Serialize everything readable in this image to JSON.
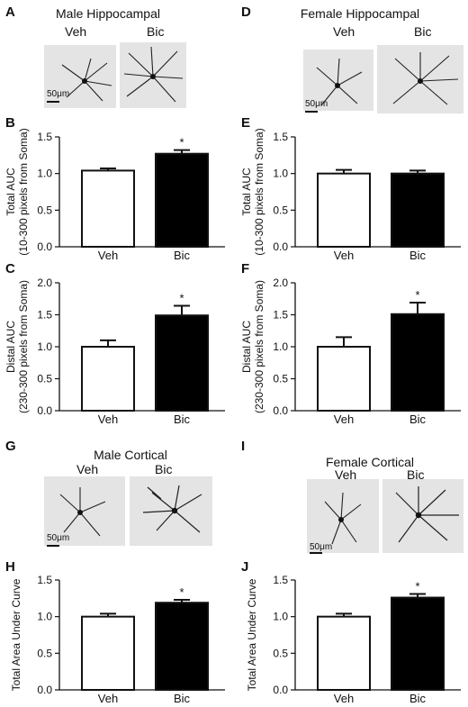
{
  "panels": [
    {
      "id": "A",
      "letter": "A"
    },
    {
      "id": "B",
      "letter": "B"
    },
    {
      "id": "C",
      "letter": "C"
    },
    {
      "id": "D",
      "letter": "D"
    },
    {
      "id": "E",
      "letter": "E"
    },
    {
      "id": "F",
      "letter": "F"
    },
    {
      "id": "G",
      "letter": "G"
    },
    {
      "id": "H",
      "letter": "H"
    },
    {
      "id": "I",
      "letter": "I"
    },
    {
      "id": "J",
      "letter": "J"
    }
  ],
  "image_groups": [
    {
      "id": "A",
      "title": "Male Hippocampal",
      "veh_label": "Veh",
      "bic_label": "Bic",
      "scale_label": "50μm"
    },
    {
      "id": "D",
      "title": "Female Hippocampal",
      "veh_label": "Veh",
      "bic_label": "Bic",
      "scale_label": "50μm"
    },
    {
      "id": "G",
      "title": "Male Cortical",
      "veh_label": "Veh",
      "bic_label": "Bic",
      "scale_label": "50μm"
    },
    {
      "id": "I",
      "title": "Female Cortical",
      "veh_label": "Veh",
      "bic_label": "Bic",
      "scale_label": "50μm"
    }
  ],
  "chart_data": [
    {
      "panel": "B",
      "type": "bar",
      "categories": [
        "Veh",
        "Bic"
      ],
      "values": [
        1.04,
        1.27
      ],
      "errors": [
        0.03,
        0.05
      ],
      "significance": [
        "",
        "*"
      ],
      "ylabel": [
        "Total AUC",
        "(10-300 pixels from Soma)"
      ],
      "ylim": [
        0,
        1.5
      ],
      "yticks": [
        "0.0",
        "0.5",
        "1.0",
        "1.5"
      ],
      "colors": [
        "#ffffff",
        "#000000"
      ]
    },
    {
      "panel": "C",
      "type": "bar",
      "categories": [
        "Veh",
        "Bic"
      ],
      "values": [
        1.0,
        1.49
      ],
      "errors": [
        0.1,
        0.15
      ],
      "significance": [
        "",
        "*"
      ],
      "ylabel": [
        "Distal AUC",
        "(230-300 pixels from Soma)"
      ],
      "ylim": [
        0,
        2.0
      ],
      "yticks": [
        "0.0",
        "0.5",
        "1.0",
        "1.5",
        "2.0"
      ],
      "colors": [
        "#ffffff",
        "#000000"
      ]
    },
    {
      "panel": "E",
      "type": "bar",
      "categories": [
        "Veh",
        "Bic"
      ],
      "values": [
        1.0,
        1.0
      ],
      "errors": [
        0.05,
        0.04
      ],
      "significance": [
        "",
        ""
      ],
      "ylabel": [
        "Total AUC",
        "(10-300 pixels from Soma)"
      ],
      "ylim": [
        0,
        1.5
      ],
      "yticks": [
        "0.0",
        "0.5",
        "1.0",
        "1.5"
      ],
      "colors": [
        "#ffffff",
        "#000000"
      ]
    },
    {
      "panel": "F",
      "type": "bar",
      "categories": [
        "Veh",
        "Bic"
      ],
      "values": [
        1.0,
        1.51
      ],
      "errors": [
        0.15,
        0.18
      ],
      "significance": [
        "",
        "*"
      ],
      "ylabel": [
        "Distal AUC",
        "(230-300 pixels from Soma)"
      ],
      "ylim": [
        0,
        2.0
      ],
      "yticks": [
        "0.0",
        "0.5",
        "1.0",
        "1.5",
        "2.0"
      ],
      "colors": [
        "#ffffff",
        "#000000"
      ]
    },
    {
      "panel": "H",
      "type": "bar",
      "categories": [
        "Veh",
        "Bic"
      ],
      "values": [
        1.0,
        1.19
      ],
      "errors": [
        0.04,
        0.04
      ],
      "significance": [
        "",
        "*"
      ],
      "ylabel": [
        "Total Area Under Curve"
      ],
      "ylim": [
        0,
        1.5
      ],
      "yticks": [
        "0.0",
        "0.5",
        "1.0",
        "1.5"
      ],
      "colors": [
        "#ffffff",
        "#000000"
      ]
    },
    {
      "panel": "J",
      "type": "bar",
      "categories": [
        "Veh",
        "Bic"
      ],
      "values": [
        1.0,
        1.26
      ],
      "errors": [
        0.04,
        0.05
      ],
      "significance": [
        "",
        "*"
      ],
      "ylabel": [
        "Total Area Under Curve"
      ],
      "ylim": [
        0,
        1.5
      ],
      "yticks": [
        "0.0",
        "0.5",
        "1.0",
        "1.5"
      ],
      "colors": [
        "#ffffff",
        "#000000"
      ]
    }
  ]
}
